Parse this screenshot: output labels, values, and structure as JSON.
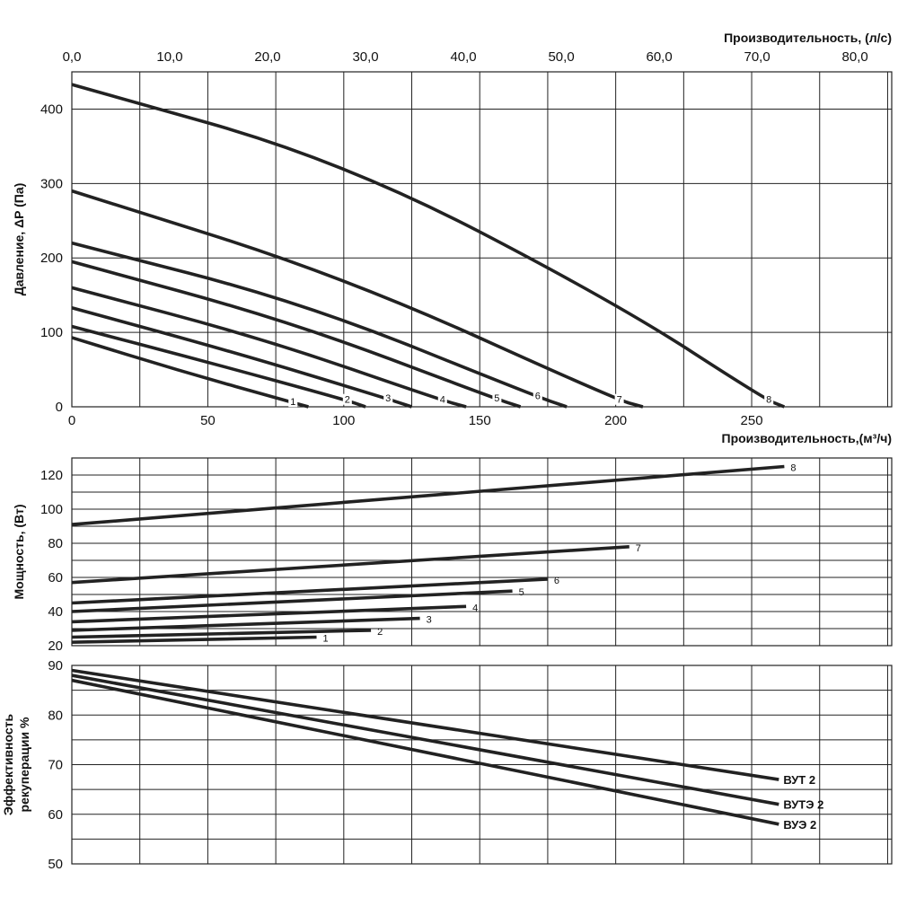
{
  "chart_data": [
    {
      "type": "line",
      "name": "pressure",
      "top_axis": {
        "title": "Производительность, (л/с)",
        "ticks": [
          "0,0",
          "10,0",
          "20,0",
          "30,0",
          "40,0",
          "50,0",
          "60,0",
          "70,0",
          "80,0"
        ],
        "range": [
          0,
          83.75
        ]
      },
      "xlabel": "Производительность,(м³/ч)",
      "xticks": [
        "0",
        "50",
        "100",
        "150",
        "200",
        "250"
      ],
      "xlim": [
        0,
        301.5
      ],
      "ylabel": "Давление, ΔP (Па)",
      "yticks": [
        "0",
        "100",
        "200",
        "300",
        "400"
      ],
      "ylim": [
        0,
        450
      ],
      "series": [
        {
          "name": "1",
          "x": [
            0,
            40,
            80,
            87
          ],
          "y": [
            93,
            48,
            7,
            0
          ]
        },
        {
          "name": "2",
          "x": [
            0,
            50,
            100,
            108
          ],
          "y": [
            108,
            60,
            10,
            0
          ]
        },
        {
          "name": "3",
          "x": [
            0,
            60,
            115,
            125
          ],
          "y": [
            133,
            73,
            12,
            0
          ]
        },
        {
          "name": "4",
          "x": [
            0,
            70,
            135,
            145
          ],
          "y": [
            160,
            92,
            10,
            0
          ]
        },
        {
          "name": "5",
          "x": [
            0,
            80,
            155,
            165
          ],
          "y": [
            195,
            115,
            12,
            0
          ]
        },
        {
          "name": "6",
          "x": [
            0,
            85,
            170,
            182
          ],
          "y": [
            220,
            140,
            15,
            0
          ]
        },
        {
          "name": "7",
          "x": [
            0,
            100,
            200,
            210
          ],
          "y": [
            290,
            175,
            10,
            0
          ]
        },
        {
          "name": "8",
          "x": [
            0,
            100,
            200,
            255,
            262
          ],
          "y": [
            433,
            330,
            140,
            10,
            0
          ]
        }
      ]
    },
    {
      "type": "line",
      "name": "power",
      "ylabel": "Мощность, (Вт)",
      "yticks": [
        "20",
        "40",
        "60",
        "80",
        "100",
        "120"
      ],
      "ylim": [
        20,
        130
      ],
      "xlim": [
        0,
        301.5
      ],
      "series": [
        {
          "name": "1",
          "x": [
            0,
            90
          ],
          "y": [
            22,
            25
          ]
        },
        {
          "name": "2",
          "x": [
            0,
            110
          ],
          "y": [
            25,
            29
          ]
        },
        {
          "name": "3",
          "x": [
            0,
            128
          ],
          "y": [
            29,
            36
          ]
        },
        {
          "name": "4",
          "x": [
            0,
            145
          ],
          "y": [
            34,
            43
          ]
        },
        {
          "name": "5",
          "x": [
            0,
            162
          ],
          "y": [
            40,
            52
          ]
        },
        {
          "name": "6",
          "x": [
            0,
            175
          ],
          "y": [
            45,
            59
          ]
        },
        {
          "name": "7",
          "x": [
            0,
            205
          ],
          "y": [
            57,
            78
          ]
        },
        {
          "name": "8",
          "x": [
            0,
            262
          ],
          "y": [
            91,
            125
          ]
        }
      ]
    },
    {
      "type": "line",
      "name": "efficiency",
      "ylabel": "Эффективность рекуперации %",
      "yticks": [
        "50",
        "60",
        "70",
        "80",
        "90"
      ],
      "ylim": [
        50,
        90
      ],
      "xlim": [
        0,
        301.5
      ],
      "series": [
        {
          "name": "ВУТ 2",
          "x": [
            0,
            260
          ],
          "y": [
            89,
            67
          ]
        },
        {
          "name": "ВУТЭ 2",
          "x": [
            0,
            260
          ],
          "y": [
            88,
            62
          ]
        },
        {
          "name": "ВУЭ 2",
          "x": [
            0,
            260
          ],
          "y": [
            87,
            58
          ]
        }
      ]
    }
  ]
}
